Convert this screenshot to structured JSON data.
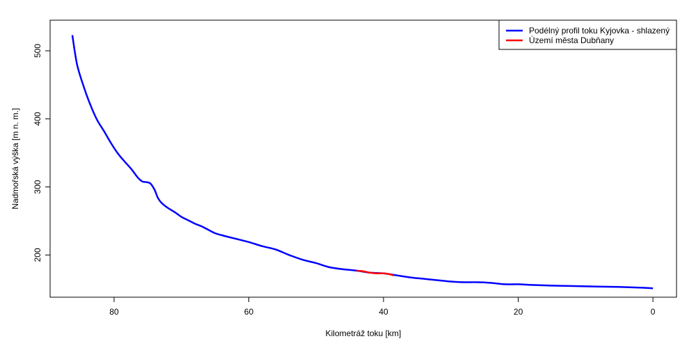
{
  "chart_data": {
    "type": "line",
    "title": "",
    "xlabel": "Kilometráž toku [km]",
    "ylabel": "Nadmořská výška [m n. m.]",
    "xlim": [
      89.5,
      -3.5
    ],
    "ylim": [
      138,
      545
    ],
    "x_reversed": true,
    "x_ticks": [
      80,
      60,
      40,
      20,
      0
    ],
    "y_ticks": [
      200,
      300,
      400,
      500
    ],
    "grid": false,
    "legend_position": "top-right",
    "series": [
      {
        "name": "Podélný profil toku Kyjovka - shlazený",
        "color": "#0000ff",
        "x": [
          86.2,
          85.5,
          84.5,
          83.5,
          82.5,
          81.5,
          80.5,
          79.5,
          78.5,
          77.5,
          76.5,
          75.8,
          75.2,
          74.6,
          74.0,
          73.5,
          73.0,
          72.0,
          71.0,
          70.0,
          69.0,
          68.0,
          67.0,
          66.0,
          65.0,
          64.0,
          62.0,
          60.0,
          58.0,
          56.0,
          54.0,
          52.0,
          50.0,
          48.0,
          46.0,
          44.0,
          42.0,
          40.0,
          38.0,
          36.0,
          34.0,
          32.0,
          30.0,
          28.0,
          26.0,
          24.0,
          22.0,
          20.0,
          18.0,
          15.0,
          10.0,
          5.0,
          2.0,
          0.0
        ],
        "y": [
          523,
          480,
          447,
          420,
          398,
          382,
          365,
          350,
          338,
          327,
          314,
          308,
          307,
          305,
          296,
          284,
          277,
          269,
          263,
          256,
          251,
          246,
          242,
          237,
          232,
          229,
          224,
          219,
          213,
          208,
          200,
          193,
          188,
          182,
          179,
          177,
          174,
          173,
          170,
          167,
          165,
          163,
          161,
          160,
          160,
          159,
          157,
          157,
          156,
          155,
          154,
          153,
          152,
          151
        ]
      },
      {
        "name": "Území města Dubňany",
        "color": "#ff0000",
        "x": [
          44.0,
          43.0,
          42.0,
          41.0,
          40.0,
          39.2,
          38.5
        ],
        "y": [
          177,
          176,
          174,
          173,
          173,
          172,
          170
        ]
      }
    ]
  }
}
